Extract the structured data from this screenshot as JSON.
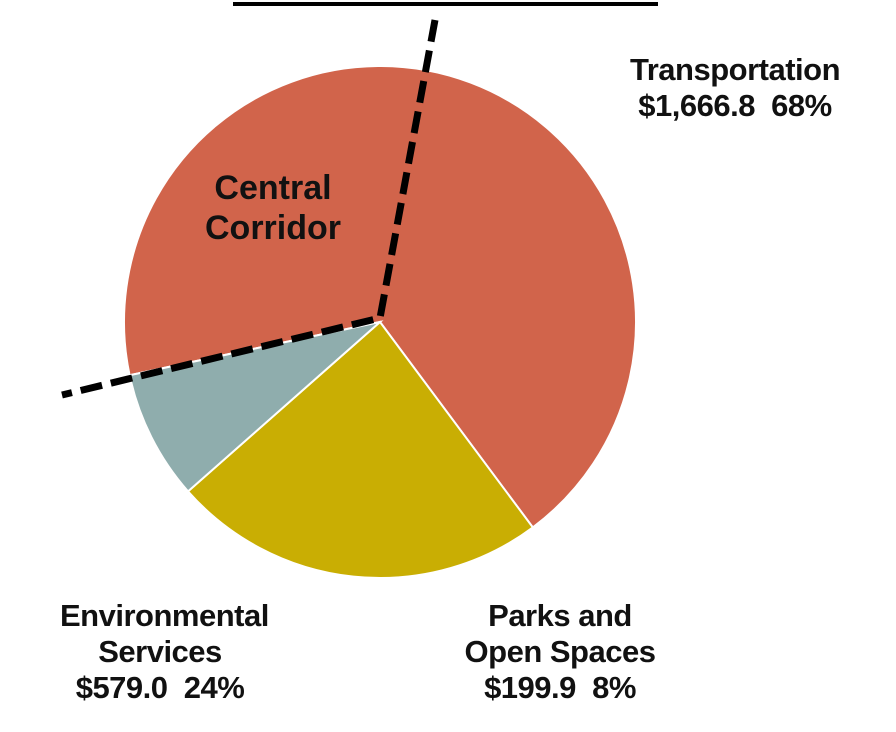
{
  "chart_data": {
    "type": "pie",
    "categories": [
      "Transportation",
      "Environmental Services",
      "Parks and Open Spaces"
    ],
    "values": [
      1666.8,
      579.0,
      199.9
    ],
    "value_labels": [
      "$1,666.8  68%",
      "$579.0  24%",
      "$199.9  8%"
    ],
    "colors": [
      "#d1644b",
      "#c9ae03",
      "#8fadad"
    ],
    "annotation": "Central Corridor"
  }
}
